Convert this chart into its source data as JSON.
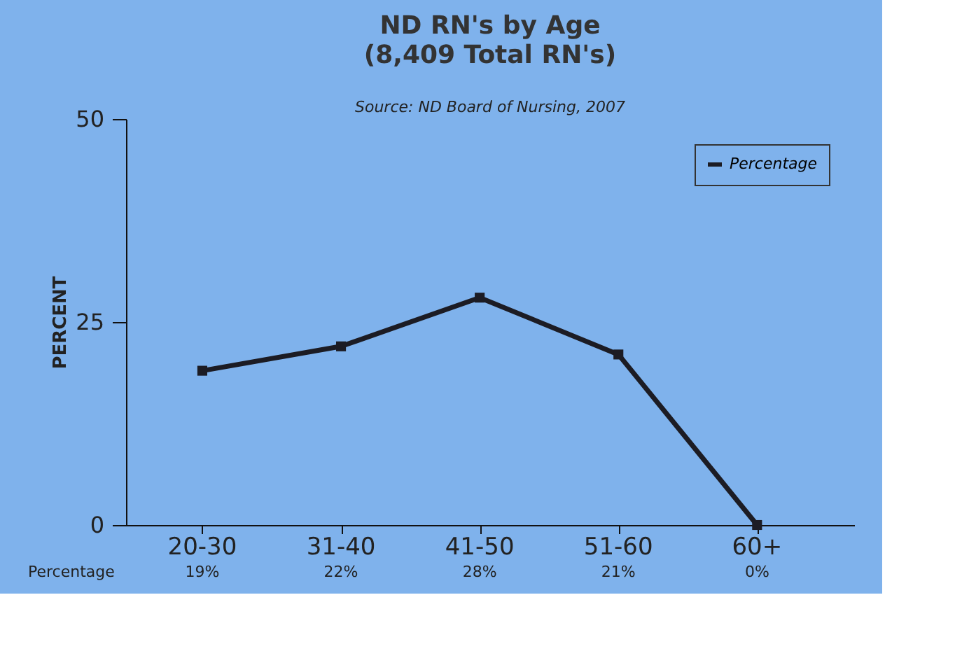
{
  "chart_data": {
    "type": "line",
    "title": "ND RN's by Age",
    "subtitle": "(8,409 Total RN's)",
    "annotations": [
      "Source: ND Board of Nursing, 2007"
    ],
    "ylabel": "PERCENT",
    "categories": [
      "20-30",
      "31-40",
      "41-50",
      "51-60",
      "60+"
    ],
    "series": [
      {
        "name": "Percentage",
        "color": "#1c1c24",
        "values": [
          19,
          22,
          28,
          21,
          0
        ],
        "value_labels": [
          "19%",
          "22%",
          "28%",
          "21%",
          "0%"
        ]
      }
    ],
    "ylim": [
      0,
      50
    ],
    "yticks": [
      0,
      25,
      50
    ],
    "grid": false,
    "legend": "top right",
    "marker": "square",
    "line_style": "solid"
  }
}
